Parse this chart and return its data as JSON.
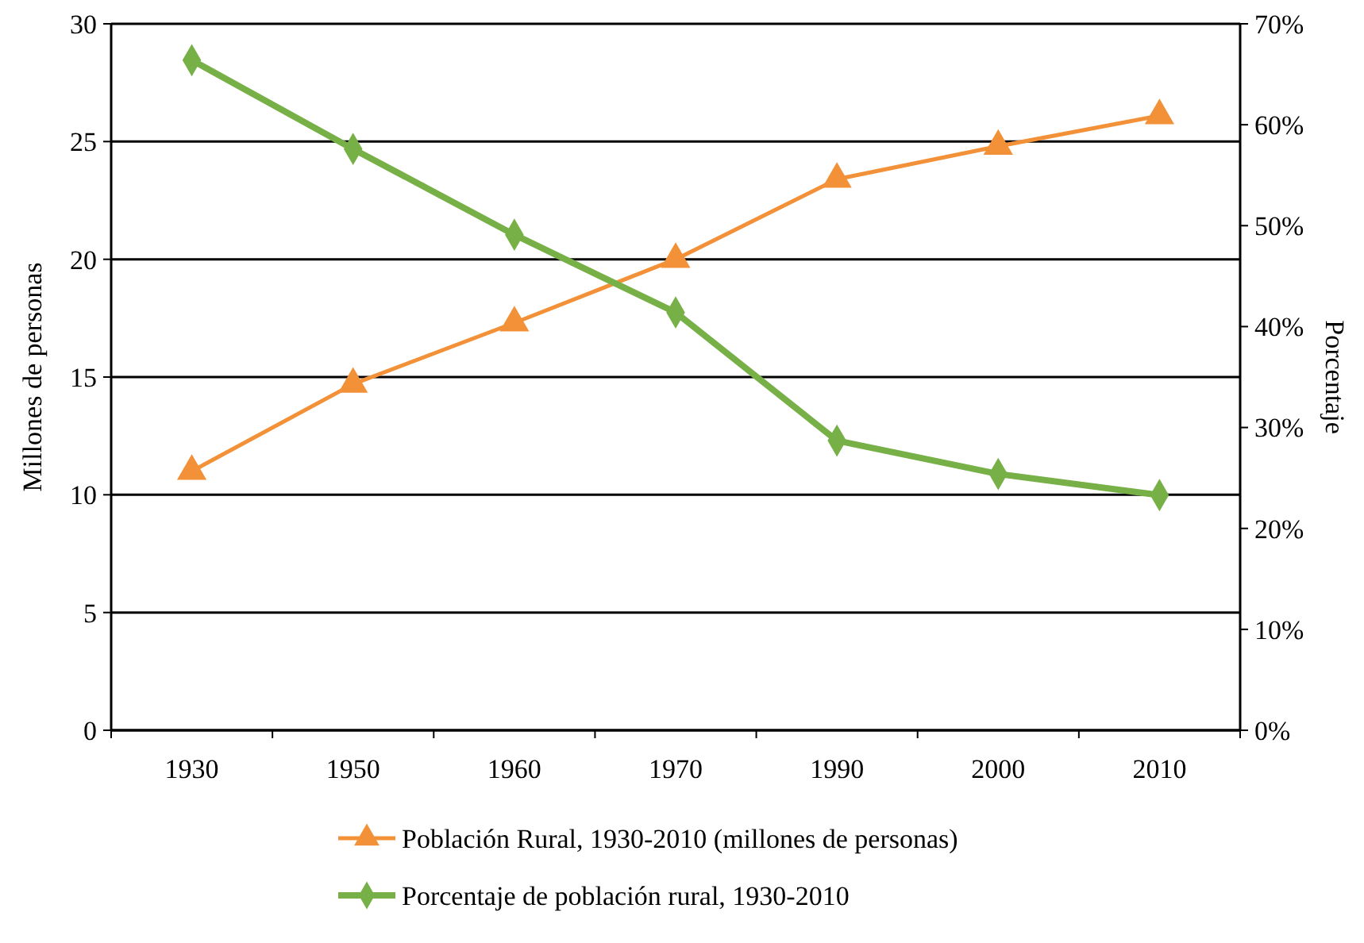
{
  "chart_data": {
    "type": "line",
    "ylabel": "Millones de personas",
    "y2label": "Porcentaje",
    "categories": [
      "1930",
      "1950",
      "1960",
      "1970",
      "1990",
      "2000",
      "2010"
    ],
    "series": [
      {
        "name": "Población Rural, 1930-2010 (millones de personas)",
        "color": "#f39138",
        "marker": "triangle",
        "values": [
          11.0,
          14.7,
          17.3,
          20.0,
          23.4,
          24.8,
          26.1
        ]
      },
      {
        "name": "Porcentaje de población rural, 1930-2010",
        "color": "#77b046",
        "marker": "diamond",
        "axis": "y2",
        "values": [
          66.4,
          57.6,
          49.1,
          41.4,
          28.7,
          25.4,
          23.3
        ]
      }
    ],
    "ylim": [
      0,
      30
    ],
    "yticks": [
      0,
      5,
      10,
      15,
      20,
      25,
      30
    ],
    "y2lim": [
      0,
      70
    ],
    "y2ticks": [
      {
        "value": 0,
        "label": "0%"
      },
      {
        "value": 10,
        "label": "10%"
      },
      {
        "value": 20,
        "label": "20%"
      },
      {
        "value": 30,
        "label": "30%"
      },
      {
        "value": 40,
        "label": "40%"
      },
      {
        "value": 50,
        "label": "50%"
      },
      {
        "value": 60,
        "label": "60%"
      },
      {
        "value": 70,
        "label": "70%"
      }
    ],
    "grid": "y",
    "legend": "bottom"
  }
}
